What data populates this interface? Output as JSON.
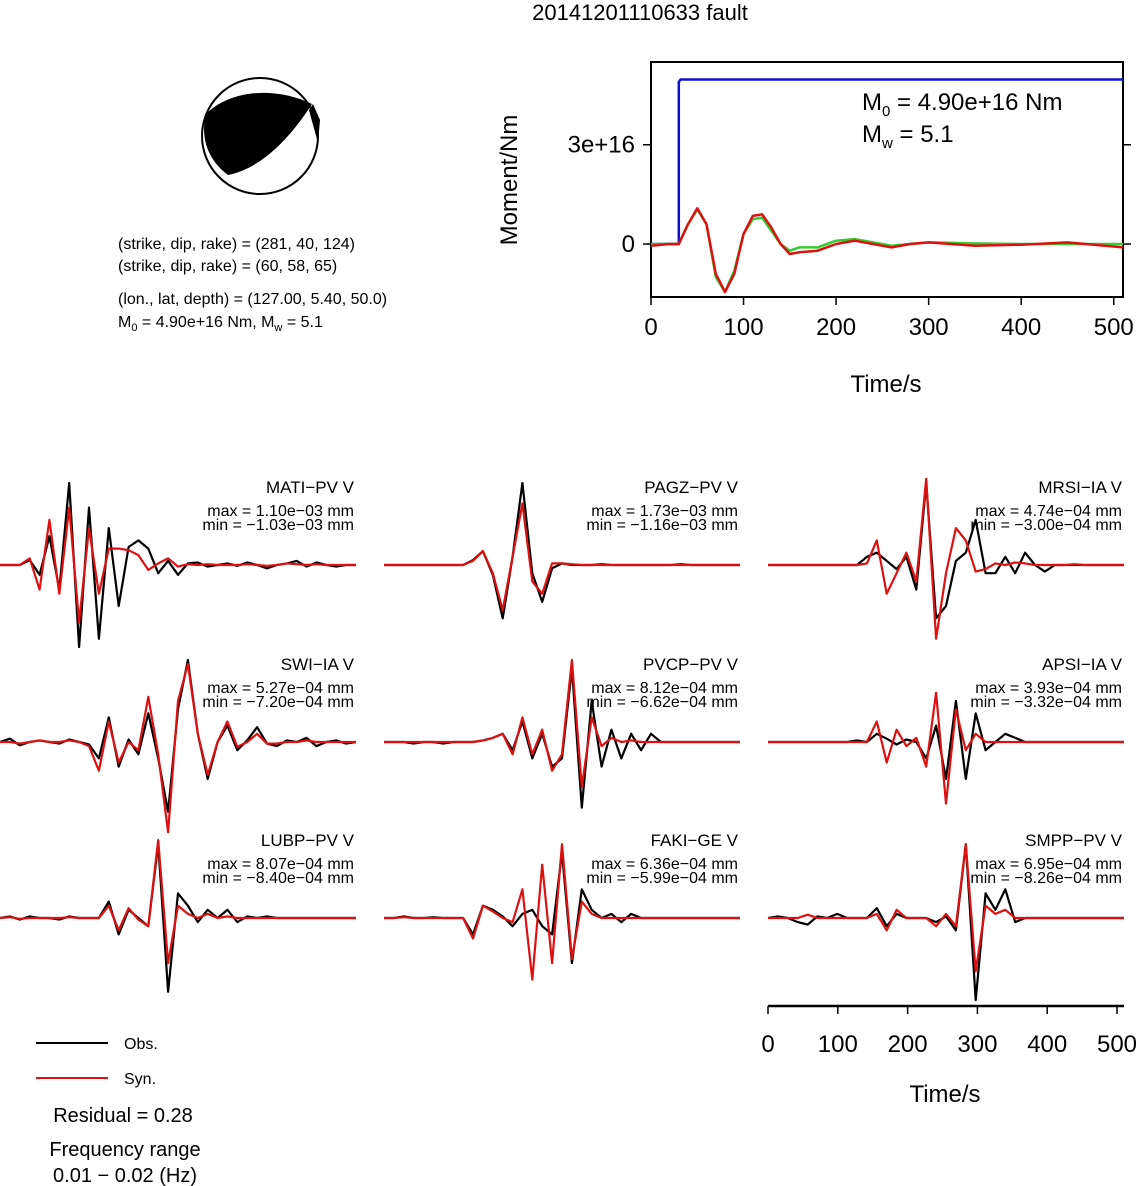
{
  "title": "20141201110633 fault",
  "colors": {
    "obs": "#000000",
    "syn": "#dd1111",
    "moment": "#1010cc",
    "stf_green": "#33cc33"
  },
  "mechanism": {
    "plane1": "(strike, dip, rake) = (281, 40, 124)",
    "plane2": "(strike, dip, rake) = (60, 58, 65)",
    "location": "(lon., lat, depth) = (127.00, 5.40, 50.0)",
    "m0_line": {
      "m": "M",
      "sub0": "0",
      "m0_text": " = 4.90e+16 Nm, M",
      "subw": "w",
      "mw_text": " = 5.1"
    }
  },
  "moment_annotation": {
    "m0_m": "M",
    "m0_sub": "0",
    "m0_val": " = 4.90e+16 Nm",
    "mw_m": "M",
    "mw_sub": "w",
    "mw_val": " = 5.1"
  },
  "chart_data": [
    {
      "type": "line",
      "name": "moment-rate-plot",
      "xlabel": "Time/s",
      "ylabel": "Moment/Nm",
      "xlim": [
        0,
        510
      ],
      "ylim": [
        -1.6e+16,
        5.5e+16
      ],
      "x_ticks": [
        0,
        100,
        200,
        300,
        400,
        500
      ],
      "x_tick_labels": [
        "0",
        "100",
        "200",
        "300",
        "400",
        "500"
      ],
      "y_ticks": [
        0,
        3e+16
      ],
      "y_tick_labels": [
        "0",
        "3e+16"
      ],
      "series": [
        {
          "color": "blue",
          "x": [
            0,
            30,
            30,
            32,
            510
          ],
          "y": [
            0,
            0,
            4.9e+16,
            4.97e+16,
            4.97e+16
          ]
        },
        {
          "color": "green",
          "x": [
            0,
            20,
            30,
            40,
            50,
            60,
            70,
            80,
            90,
            100,
            110,
            120,
            130,
            140,
            150,
            160,
            180,
            200,
            220,
            240,
            260,
            280,
            300,
            350,
            400,
            450,
            510
          ],
          "y": [
            0,
            0,
            0,
            6000000000000000.0,
            1.05e+16,
            6000000000000000.0,
            -1e+16,
            -1.45e+16,
            -8000000000000000.0,
            3000000000000000.0,
            7500000000000000.0,
            8000000000000000.0,
            4000000000000000.0,
            0,
            -2000000000000000.0,
            -1000000000000000.0,
            -1000000000000000.0,
            1000000000000000.0,
            1500000000000000.0,
            500000000000000.0,
            -500000000000000.0,
            0,
            500000000000000.0,
            200000000000000.0,
            0,
            0,
            0
          ]
        },
        {
          "color": "red",
          "x": [
            0,
            20,
            30,
            40,
            50,
            60,
            70,
            80,
            90,
            100,
            110,
            120,
            130,
            140,
            150,
            160,
            180,
            200,
            220,
            240,
            260,
            280,
            300,
            350,
            400,
            450,
            510
          ],
          "y": [
            -500000000000000.0,
            0,
            0,
            6000000000000000.0,
            1.08e+16,
            6000000000000000.0,
            -9000000000000000.0,
            -1.45e+16,
            -9000000000000000.0,
            3000000000000000.0,
            8500000000000000.0,
            9000000000000000.0,
            5000000000000000.0,
            0,
            -3000000000000000.0,
            -2500000000000000.0,
            -2000000000000000.0,
            0,
            1000000000000000.0,
            0,
            -1000000000000000.0,
            0,
            500000000000000.0,
            -500000000000000.0,
            -200000000000000.0,
            500000000000000.0,
            -1000000000000000.0
          ]
        }
      ]
    },
    {
      "type": "line",
      "name": "waveform-grid",
      "xlabel": "Time/s",
      "xlim": [
        0,
        510
      ],
      "x_ticks": [
        0,
        100,
        200,
        300,
        400,
        500
      ],
      "x_tick_labels": [
        "0",
        "100",
        "200",
        "300",
        "400",
        "500"
      ],
      "legend": [
        {
          "label": "Obs.",
          "color": "black"
        },
        {
          "label": "Syn.",
          "color": "red"
        }
      ],
      "residual": "Residual = 0.28",
      "freq_title": "Frequency range",
      "freq_range": "0.01 − 0.02 (Hz)",
      "stations": [
        {
          "label": "MATI−PV V",
          "max": "max = 1.10e−03 mm",
          "min": "min = −1.03e−03 mm",
          "obs": [
            0,
            0,
            0,
            0.06,
            -0.12,
            0.35,
            -0.3,
            1.0,
            -1.0,
            0.7,
            -0.9,
            0.45,
            -0.5,
            0.22,
            0.3,
            0.2,
            -0.1,
            0.05,
            -0.12,
            0.02,
            0.03,
            -0.02,
            0,
            0.02,
            -0.01,
            0.03,
            0,
            -0.04,
            0,
            0.02,
            0.05,
            -0.02,
            0.03,
            0,
            -0.02,
            0,
            0
          ],
          "syn": [
            0,
            0,
            0,
            0.08,
            -0.3,
            0.55,
            -0.35,
            0.7,
            -0.7,
            0.45,
            -0.35,
            0.2,
            0.2,
            0.18,
            0.12,
            -0.06,
            0.02,
            0.08,
            -0.02,
            0.01,
            0,
            0.01,
            0,
            0,
            0,
            0.01,
            0,
            -0.01,
            0,
            0.02,
            0.01,
            0,
            0.01,
            0,
            0,
            0,
            0
          ]
        },
        {
          "label": "PAGZ−PV V",
          "max": "max = 1.73e−03 mm",
          "min": "min = −1.16e−03 mm",
          "obs": [
            0,
            0,
            0,
            0,
            0,
            0,
            0,
            0,
            0,
            0.06,
            0.17,
            -0.12,
            -0.65,
            0.1,
            1.0,
            -0.1,
            -0.45,
            -0.04,
            0.02,
            0,
            0,
            0,
            0.01,
            0,
            0,
            0,
            0,
            0,
            0,
            0,
            0.01,
            0,
            0,
            0,
            0,
            0,
            0
          ],
          "syn": [
            0,
            0,
            0,
            0,
            0,
            0,
            0,
            0,
            0,
            0.05,
            0.17,
            -0.1,
            -0.55,
            0.1,
            0.75,
            -0.2,
            -0.35,
            0.02,
            0.02,
            0.01,
            0,
            0,
            0,
            0,
            0,
            0,
            0,
            0,
            0,
            0,
            0,
            0,
            0,
            0,
            0,
            0,
            0
          ]
        },
        {
          "label": "MRSI−IA V",
          "max": "max = 4.74e−04 mm",
          "min": "min = −3.00e−04 mm",
          "obs": [
            0,
            0,
            0,
            0,
            0,
            0,
            0,
            0,
            0,
            0,
            0.1,
            0.15,
            0.05,
            -0.05,
            0.1,
            -0.3,
            1.0,
            -0.65,
            -0.5,
            0.05,
            0.15,
            0.55,
            -0.1,
            -0.1,
            0.1,
            -0.1,
            0.15,
            0,
            -0.08,
            0,
            0,
            0,
            0,
            0,
            0,
            0,
            0
          ],
          "syn": [
            0,
            0,
            0,
            0,
            0,
            0,
            0,
            0,
            0,
            0,
            0.02,
            0.3,
            -0.35,
            -0.1,
            0.15,
            -0.2,
            1.05,
            -0.9,
            -0.1,
            0.45,
            0.3,
            -0.08,
            -0.05,
            0.02,
            0,
            0.03,
            0.02,
            0,
            0,
            0,
            0,
            0.01,
            0,
            0,
            0,
            0,
            0
          ]
        },
        {
          "label": "SWI−IA V",
          "max": "max = 5.27e−04 mm",
          "min": "min = −7.20e−04 mm",
          "obs": [
            0,
            0.04,
            -0.04,
            0,
            0.02,
            0,
            -0.02,
            0.03,
            0,
            -0.03,
            -0.2,
            0.3,
            -0.3,
            0.03,
            -0.15,
            0.35,
            -0.2,
            -0.85,
            0.4,
            1.0,
            0.1,
            -0.45,
            0,
            0.2,
            -0.1,
            0.02,
            0.18,
            -0.02,
            -0.05,
            0.02,
            0,
            0.05,
            -0.05,
            0,
            0.02,
            -0.02,
            0
          ],
          "syn": [
            0,
            0,
            -0.02,
            0,
            0.02,
            0,
            0,
            0.02,
            0,
            -0.05,
            -0.35,
            0.25,
            -0.25,
            0,
            -0.1,
            0.55,
            -0.15,
            -1.1,
            0.5,
            0.95,
            0.1,
            -0.4,
            0,
            0.25,
            -0.06,
            0,
            0.1,
            -0.02,
            -0.02,
            0,
            0,
            0.02,
            0,
            0,
            0,
            0,
            0
          ]
        },
        {
          "label": "PVCP−PV V",
          "max": "max = 8.12e−04 mm",
          "min": "min = −6.62e−04 mm",
          "obs": [
            0,
            0,
            0,
            -0.02,
            0,
            0,
            -0.02,
            0,
            0,
            0,
            0.02,
            0.05,
            0.1,
            -0.1,
            0.25,
            -0.2,
            0.1,
            -0.3,
            -0.2,
            0.9,
            -0.8,
            0.5,
            -0.3,
            0.15,
            -0.2,
            0.1,
            -0.1,
            0.1,
            0,
            0,
            0,
            0,
            0,
            0,
            0,
            0,
            0
          ],
          "syn": [
            0,
            0,
            0,
            0,
            0,
            0,
            0,
            0,
            0,
            0,
            0.02,
            0.05,
            0.1,
            -0.15,
            0.3,
            -0.15,
            0.15,
            -0.35,
            -0.15,
            1.0,
            -0.55,
            0.3,
            -0.05,
            0.05,
            0,
            0.02,
            0,
            0,
            0,
            0,
            0,
            0,
            0,
            0,
            0,
            0,
            0
          ]
        },
        {
          "label": "APSI−IA V",
          "max": "max = 3.93e−04 mm",
          "min": "min = −3.32e−04 mm",
          "obs": [
            0,
            0,
            0,
            0,
            0,
            0,
            0,
            0,
            0,
            0.02,
            0,
            0.1,
            0.04,
            -0.03,
            0.03,
            0,
            -0.2,
            0.2,
            -0.45,
            0.5,
            -0.45,
            0.35,
            -0.1,
            0,
            0.1,
            0.05,
            0,
            0,
            0,
            0,
            0,
            0,
            0,
            0,
            0,
            0,
            0
          ],
          "syn": [
            0,
            0,
            0,
            0,
            0,
            0,
            0,
            0,
            0,
            0,
            0,
            0.25,
            -0.25,
            0.15,
            -0.05,
            0.05,
            -0.3,
            0.6,
            -0.75,
            0.4,
            -0.1,
            0.1,
            0,
            0,
            0,
            0,
            0,
            0,
            0,
            0,
            0,
            0,
            0,
            0,
            0,
            0,
            0
          ]
        },
        {
          "label": "LUBP−PV V",
          "max": "max = 8.07e−04 mm",
          "min": "min = −8.40e−04 mm",
          "obs": [
            0,
            0.02,
            -0.02,
            0.02,
            0,
            0,
            -0.02,
            0.02,
            0,
            0,
            0,
            0.2,
            -0.2,
            0.1,
            0,
            -0.1,
            0.9,
            -0.9,
            0.3,
            0.15,
            -0.05,
            0.1,
            0,
            0.1,
            -0.05,
            0.02,
            0,
            0.02,
            0,
            0,
            0,
            0,
            0,
            0,
            0,
            0,
            0
          ],
          "syn": [
            0,
            0.01,
            -0.01,
            0,
            0,
            0,
            0,
            0.01,
            0,
            0,
            0,
            0.15,
            -0.15,
            0.12,
            -0.02,
            -0.1,
            0.95,
            -0.55,
            0.15,
            0.05,
            0,
            0.05,
            0,
            0.02,
            0,
            0,
            0,
            0,
            0,
            0,
            0,
            0,
            0,
            0,
            0,
            0,
            0
          ]
        },
        {
          "label": "FAKI−GE V",
          "max": "max = 6.36e−04 mm",
          "min": "min = −5.99e−04 mm",
          "obs": [
            0,
            0,
            0.02,
            0,
            0,
            0.01,
            0,
            0,
            0,
            -0.2,
            0.15,
            0.1,
            0.02,
            -0.1,
            0.05,
            0.1,
            -0.1,
            -0.2,
            0.8,
            -0.55,
            0.35,
            0.1,
            0,
            0.05,
            -0.05,
            0.05,
            0,
            0,
            0,
            0,
            0,
            0,
            0,
            0,
            0,
            0,
            0
          ],
          "syn": [
            0,
            0,
            0.01,
            0,
            0,
            0,
            0,
            0,
            0,
            -0.25,
            0.15,
            0.08,
            0,
            -0.05,
            0.35,
            -0.75,
            0.65,
            -0.55,
            0.9,
            -0.5,
            0.2,
            0.05,
            0,
            0,
            0,
            0,
            0,
            0,
            0,
            0,
            0,
            0,
            0,
            0,
            0,
            0,
            0
          ]
        },
        {
          "label": "SMPP−PV V",
          "max": "max = 6.95e−04 mm",
          "min": "min = −8.26e−04 mm",
          "obs": [
            0,
            0.02,
            0,
            -0.05,
            -0.08,
            0.02,
            0,
            0.05,
            0,
            0,
            0,
            0.12,
            -0.1,
            0.05,
            0,
            0,
            0,
            -0.05,
            0.02,
            -0.15,
            0.9,
            -1.0,
            0.3,
            0.1,
            0.35,
            -0.05,
            0,
            0,
            0,
            0,
            0,
            0,
            0,
            0,
            0,
            0,
            0
          ],
          "syn": [
            0,
            0,
            0,
            0,
            0.04,
            0,
            0,
            0,
            0,
            0,
            0,
            0.05,
            -0.15,
            0.1,
            0,
            0,
            0,
            -0.1,
            0.05,
            -0.1,
            0.9,
            -0.65,
            0.15,
            0.05,
            0.1,
            0,
            0,
            0,
            0,
            0,
            0,
            0,
            0,
            0,
            0,
            0,
            0
          ]
        }
      ]
    }
  ]
}
